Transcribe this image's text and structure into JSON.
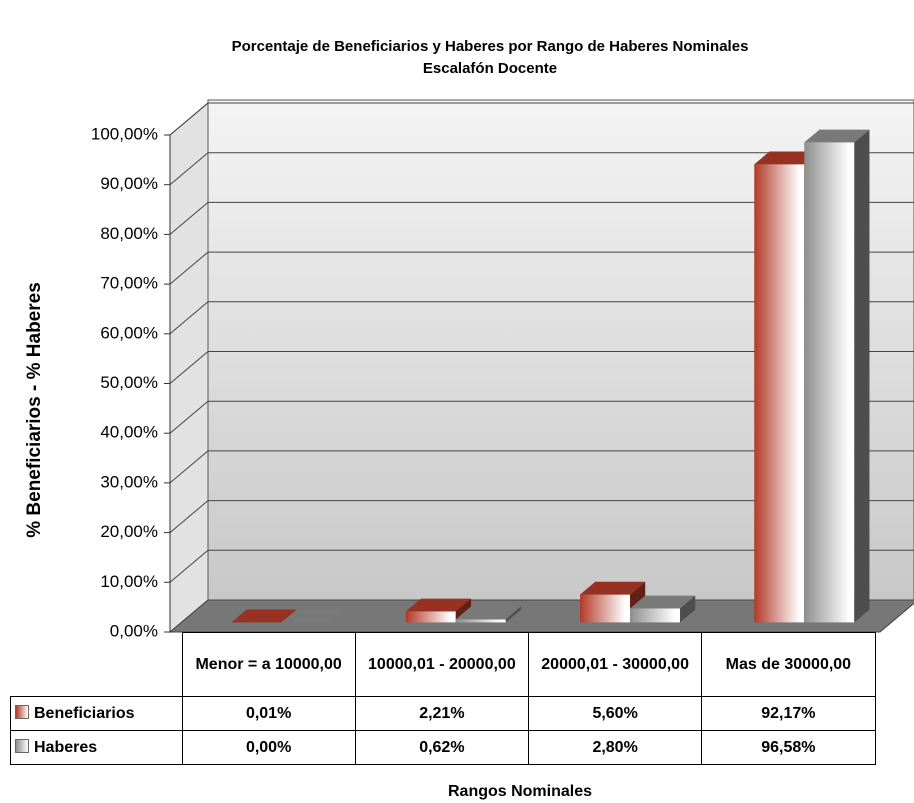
{
  "chart_data": {
    "type": "bar3d",
    "title": "Porcentaje de Beneficiarios y Haberes por Rango de Haberes Nominales",
    "subtitle": "Escalafón Docente",
    "y_label": "% Beneficiarios - % Haberes",
    "x_label": "Rangos Nominales",
    "categories": [
      "Menor = a 10000,00",
      "10000,01 - 20000,00",
      "20000,01 - 30000,00",
      "Mas de 30000,00"
    ],
    "series": [
      {
        "name": "Beneficiarios",
        "color": "#b23a28",
        "values": [
          0.01,
          2.21,
          5.6,
          92.17
        ],
        "value_labels": [
          "0,01%",
          "2,21%",
          "5,60%",
          "92,17%"
        ]
      },
      {
        "name": "Haberes",
        "color": "#8e8e8e",
        "values": [
          0.0,
          0.62,
          2.8,
          96.58
        ],
        "value_labels": [
          "0,00%",
          "0,62%",
          "2,80%",
          "96,58%"
        ]
      }
    ],
    "ylim": [
      0,
      100
    ],
    "yticks": [
      {
        "value": 0,
        "label": "0,00%"
      },
      {
        "value": 10,
        "label": "10,00%"
      },
      {
        "value": 20,
        "label": "20,00%"
      },
      {
        "value": 30,
        "label": "30,00%"
      },
      {
        "value": 40,
        "label": "40,00%"
      },
      {
        "value": 50,
        "label": "50,00%"
      },
      {
        "value": 60,
        "label": "60,00%"
      },
      {
        "value": 70,
        "label": "70,00%"
      },
      {
        "value": 80,
        "label": "80,00%"
      },
      {
        "value": 90,
        "label": "90,00%"
      },
      {
        "value": 100,
        "label": "100,00%"
      }
    ],
    "grid": true
  }
}
